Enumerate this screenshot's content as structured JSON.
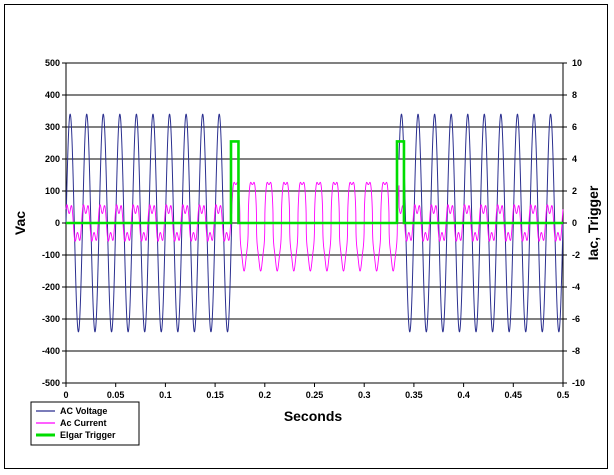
{
  "chart_data": {
    "type": "line",
    "title": "",
    "xlabel": "Seconds",
    "ylabel_left": "Vac",
    "ylabel_right": "Iac, Trigger",
    "xlim": [
      0,
      0.5
    ],
    "ylim_left": [
      -500,
      500
    ],
    "ylim_right": [
      -10,
      10
    ],
    "x_ticks": [
      "0",
      "0.05",
      "0.1",
      "0.15",
      "0.2",
      "0.25",
      "0.3",
      "0.35",
      "0.4",
      "0.45",
      "0.5"
    ],
    "y_left_ticks": [
      "500",
      "400",
      "300",
      "200",
      "100",
      "0",
      "-100",
      "-200",
      "-300",
      "-400",
      "-500"
    ],
    "y_right_ticks": [
      "10",
      "8",
      "6",
      "4",
      "2",
      "0",
      "-2",
      "-4",
      "-6",
      "-8",
      "-10"
    ],
    "grid": true,
    "legend_position": "bottom-left",
    "series": [
      {
        "name": "AC Voltage",
        "axis": "left",
        "color": "#2b2f8f",
        "frequency_hz": 60,
        "amplitude": 340,
        "segments": [
          [
            0,
            0.1667
          ],
          [
            0.335,
            0.5
          ]
        ]
      },
      {
        "name": "Ac Current",
        "axis": "right",
        "color": "#ff00ff",
        "frequency_hz": 60,
        "amplitude_normal": 1.2,
        "amplitude_outage": 3.0,
        "outage_interval": [
          0.1667,
          0.335
        ]
      },
      {
        "name": "Elgar Trigger",
        "axis": "right",
        "color": "#00dd00",
        "points": [
          [
            0,
            0
          ],
          [
            0.166,
            0
          ],
          [
            0.166,
            5.1
          ],
          [
            0.1735,
            5.1
          ],
          [
            0.1735,
            0
          ],
          [
            0.333,
            0
          ],
          [
            0.333,
            5.1
          ],
          [
            0.34,
            5.1
          ],
          [
            0.34,
            0
          ],
          [
            0.5,
            0
          ]
        ]
      }
    ]
  },
  "legend": [
    {
      "label": "AC Voltage",
      "color": "#2b2f8f"
    },
    {
      "label": "Ac Current",
      "color": "#ff00ff"
    },
    {
      "label": "Elgar Trigger",
      "color": "#00dd00"
    }
  ]
}
